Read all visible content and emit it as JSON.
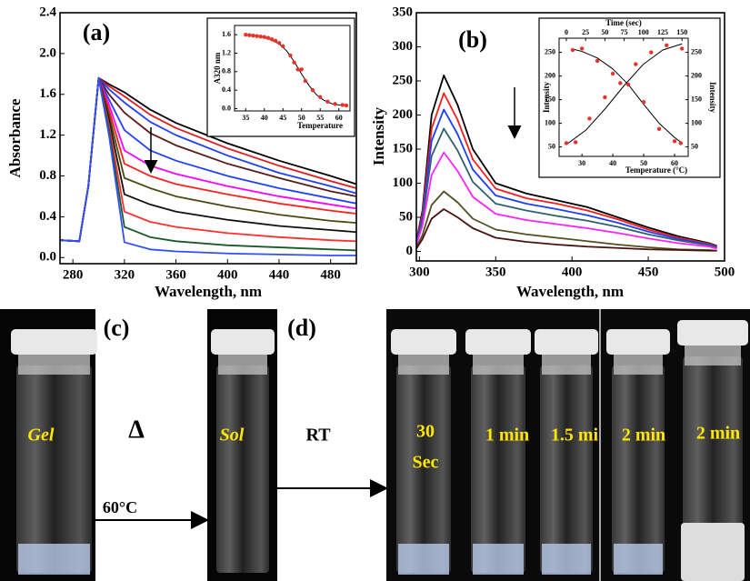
{
  "chart_data": [
    {
      "type": "line",
      "title": "(a)",
      "xlabel": "Wavelength, nm",
      "ylabel": "Absorbance",
      "xlim": [
        270,
        500
      ],
      "xticks": [
        280,
        320,
        360,
        400,
        440,
        480
      ],
      "ylim": [
        -0.06,
        2.4
      ],
      "yticks": [
        {
          "value": 0,
          "label": "0.0"
        },
        0.4,
        0.8,
        1.2,
        1.6,
        {
          "value": 2,
          "label": "2.0"
        },
        2.4
      ],
      "x": [
        270,
        285,
        292,
        300,
        308,
        320,
        340,
        360,
        400,
        440,
        480,
        500
      ],
      "series": [
        {
          "color": "#000000",
          "values": [
            0.17,
            0.16,
            0.7,
            1.76,
            1.7,
            1.62,
            1.45,
            1.32,
            1.12,
            0.95,
            0.8,
            0.72
          ]
        },
        {
          "color": "#e41a1c",
          "values": [
            0.17,
            0.16,
            0.7,
            1.76,
            1.68,
            1.58,
            1.4,
            1.27,
            1.07,
            0.9,
            0.75,
            0.68
          ]
        },
        {
          "color": "#1f3fff",
          "values": [
            0.17,
            0.16,
            0.7,
            1.76,
            1.65,
            1.52,
            1.33,
            1.2,
            1.0,
            0.83,
            0.7,
            0.63
          ]
        },
        {
          "color": "#5a1a1a",
          "values": [
            0.17,
            0.16,
            0.7,
            1.76,
            1.6,
            1.42,
            1.22,
            1.1,
            0.92,
            0.78,
            0.65,
            0.6
          ]
        },
        {
          "color": "#2040ff",
          "values": [
            0.17,
            0.16,
            0.7,
            1.76,
            1.55,
            1.25,
            1.05,
            0.95,
            0.8,
            0.68,
            0.58,
            0.53
          ]
        },
        {
          "color": "#ff00ff",
          "values": [
            0.17,
            0.16,
            0.7,
            1.76,
            1.5,
            1.05,
            0.9,
            0.82,
            0.7,
            0.6,
            0.52,
            0.48
          ]
        },
        {
          "color": "#ff2020",
          "values": [
            0.17,
            0.16,
            0.7,
            1.76,
            1.45,
            0.92,
            0.8,
            0.72,
            0.62,
            0.53,
            0.46,
            0.43
          ]
        },
        {
          "color": "#4a4a10",
          "values": [
            0.17,
            0.16,
            0.7,
            1.76,
            1.4,
            0.78,
            0.68,
            0.6,
            0.5,
            0.42,
            0.36,
            0.34
          ]
        },
        {
          "color": "#111111",
          "values": [
            0.17,
            0.16,
            0.7,
            1.76,
            1.35,
            0.62,
            0.52,
            0.45,
            0.37,
            0.31,
            0.27,
            0.25
          ]
        },
        {
          "color": "#ff3030",
          "values": [
            0.17,
            0.16,
            0.7,
            1.76,
            1.3,
            0.45,
            0.35,
            0.3,
            0.24,
            0.2,
            0.17,
            0.16
          ]
        },
        {
          "color": "#1a5a2a",
          "values": [
            0.17,
            0.16,
            0.7,
            1.76,
            1.25,
            0.3,
            0.2,
            0.16,
            0.12,
            0.1,
            0.08,
            0.07
          ]
        },
        {
          "color": "#3050ff",
          "values": [
            0.17,
            0.16,
            0.7,
            1.76,
            1.2,
            0.15,
            0.08,
            0.06,
            0.04,
            0.03,
            0.02,
            0.02
          ]
        }
      ]
    },
    {
      "type": "scatter",
      "xlabel": "Temperature",
      "ylabel": "A320 nm",
      "xlim": [
        32,
        63
      ],
      "xticks": [
        35,
        40,
        45,
        50,
        55,
        60
      ],
      "ylim": [
        -0.05,
        1.8
      ],
      "yticks": [
        {
          "value": 0,
          "label": "0.0"
        },
        0.4,
        0.8,
        1.2,
        1.6
      ],
      "series": [
        {
          "type": "line",
          "color": "#000000",
          "x": [
            35,
            38,
            41,
            44,
            46,
            48,
            50,
            52,
            54,
            56,
            58,
            60,
            62
          ],
          "values": [
            1.6,
            1.57,
            1.52,
            1.4,
            1.25,
            1.02,
            0.75,
            0.5,
            0.3,
            0.18,
            0.11,
            0.08,
            0.07
          ]
        },
        {
          "type": "scatter",
          "color": "#e8322a",
          "x": [
            35,
            36,
            37,
            38,
            39,
            40,
            41,
            42,
            43,
            44,
            45,
            47,
            48,
            49,
            50,
            51,
            53,
            55,
            57,
            59,
            61,
            62
          ],
          "values": [
            1.6,
            1.59,
            1.58,
            1.57,
            1.56,
            1.55,
            1.53,
            1.5,
            1.47,
            1.42,
            1.35,
            1.15,
            1.0,
            0.85,
            0.85,
            0.6,
            0.4,
            0.25,
            0.15,
            0.1,
            0.08,
            0.07
          ]
        }
      ]
    },
    {
      "type": "line",
      "title": "(b)",
      "xlabel": "Wavelength, nm",
      "ylabel": "Intensity",
      "xlim": [
        298,
        500
      ],
      "xticks": [
        300,
        350,
        400,
        450,
        500
      ],
      "ylim": [
        -14,
        350
      ],
      "yticks": [
        0,
        50,
        100,
        150,
        200,
        250,
        300,
        350
      ],
      "x": [
        298,
        302,
        308,
        316,
        325,
        335,
        350,
        370,
        390,
        410,
        430,
        450,
        470,
        490,
        495
      ],
      "series": [
        {
          "color": "#000000",
          "values": [
            15,
            60,
            200,
            258,
            215,
            150,
            100,
            85,
            75,
            65,
            50,
            35,
            22,
            12,
            8
          ]
        },
        {
          "color": "#ff1a1a",
          "values": [
            14,
            55,
            180,
            232,
            193,
            135,
            92,
            78,
            70,
            60,
            47,
            32,
            20,
            11,
            7
          ]
        },
        {
          "color": "#1a3fff",
          "values": [
            13,
            50,
            162,
            208,
            172,
            120,
            82,
            70,
            62,
            53,
            42,
            29,
            18,
            10,
            6
          ]
        },
        {
          "color": "#2f5f6f",
          "values": [
            12,
            45,
            140,
            180,
            148,
            102,
            70,
            60,
            52,
            45,
            36,
            25,
            16,
            9,
            5
          ]
        },
        {
          "color": "#ff20ff",
          "values": [
            10,
            38,
            112,
            145,
            118,
            80,
            55,
            46,
            40,
            34,
            27,
            19,
            12,
            7,
            4
          ]
        },
        {
          "color": "#505020",
          "values": [
            6,
            24,
            68,
            88,
            72,
            48,
            32,
            25,
            20,
            15,
            10,
            6,
            3,
            2,
            1
          ]
        },
        {
          "color": "#4a1010",
          "values": [
            4,
            18,
            48,
            62,
            50,
            34,
            20,
            14,
            10,
            7,
            5,
            3,
            2,
            1,
            1
          ]
        }
      ]
    },
    {
      "type": "scatter",
      "xlabel": "Temperature (°C)",
      "ylabel": "Intensity",
      "x2label": "Time (sec)",
      "y2label": "Intensity",
      "xlim": [
        22.6,
        64.4
      ],
      "xticks": [
        30,
        40,
        50,
        60
      ],
      "x2lim": [
        -9.4,
        158
      ],
      "x2ticks": [
        0,
        25,
        50,
        75,
        100,
        125,
        150
      ],
      "ylim": [
        30,
        280
      ],
      "yticks": [
        50,
        100,
        150,
        200,
        250
      ],
      "y2lim": [
        30,
        280
      ],
      "y2ticks": [
        50,
        100,
        150,
        200,
        250
      ],
      "series": [
        {
          "type": "line",
          "color": "#000000",
          "x": [
            27,
            30,
            35,
            40,
            45,
            50,
            55,
            60,
            62
          ],
          "values": [
            257,
            252,
            238,
            215,
            182,
            140,
            100,
            70,
            60
          ]
        },
        {
          "type": "line",
          "color": "#000000",
          "axis": "x2",
          "x": [
            0,
            25,
            50,
            75,
            100,
            125,
            150
          ],
          "values": [
            55,
            85,
            130,
            180,
            225,
            255,
            268
          ]
        },
        {
          "type": "scatter",
          "color": "#e8322a",
          "x": [
            27,
            30,
            35,
            40,
            45,
            50,
            55,
            60,
            62
          ],
          "values": [
            255,
            258,
            232,
            205,
            182,
            145,
            88,
            62,
            58
          ]
        },
        {
          "type": "scatter",
          "color": "#e8322a",
          "axis": "x2",
          "x": [
            0,
            12,
            30,
            50,
            70,
            90,
            110,
            130,
            150
          ],
          "values": [
            58,
            60,
            110,
            155,
            185,
            225,
            250,
            265,
            258
          ]
        }
      ]
    }
  ],
  "photo_panel": {
    "labels": [
      "(c)",
      "(d)",
      "Gel",
      "Δ",
      "60°C",
      "Sol",
      "RT",
      "30",
      "Sec",
      "1 min",
      "1.5 mi",
      "2 min",
      "2 min"
    ]
  }
}
